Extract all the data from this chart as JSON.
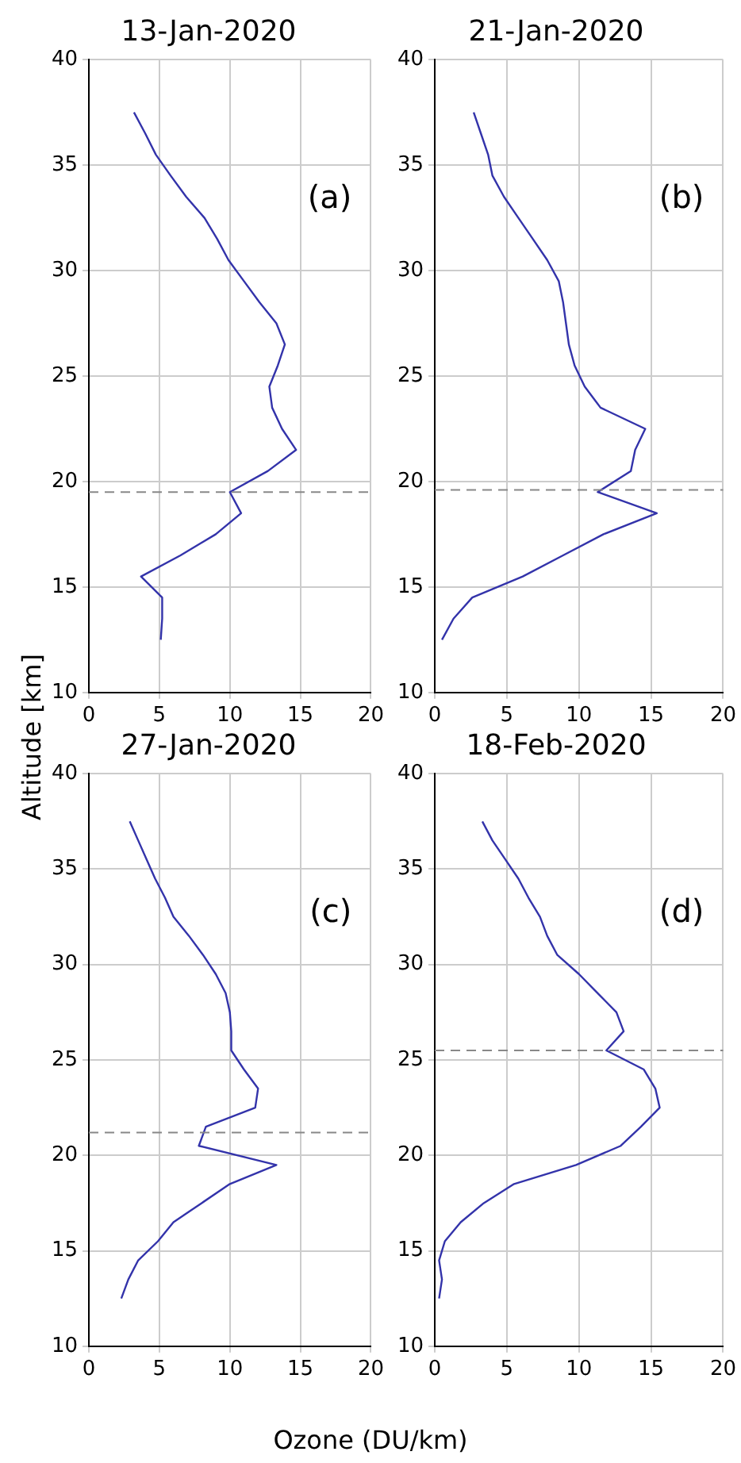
{
  "chart_data": [
    {
      "type": "line",
      "title": "13-Jan-2020",
      "ylabel": "Altitude [km]",
      "annotations": [
        "(a)"
      ],
      "series": [
        {
          "color": "#3333aa",
          "x": [
            3.2,
            4.0,
            4.75,
            5.8,
            6.9,
            8.2,
            9.1,
            9.9,
            11.0,
            12.1,
            13.3,
            13.9,
            13.4,
            12.8,
            13.0,
            13.7,
            14.7,
            12.7,
            10.0,
            10.8,
            9.0,
            6.5,
            3.7,
            5.2,
            5.2,
            5.1
          ],
          "values": [
            37.5,
            36.5,
            35.5,
            34.5,
            33.5,
            32.5,
            31.5,
            30.5,
            29.5,
            28.5,
            27.5,
            26.5,
            25.5,
            24.5,
            23.5,
            22.5,
            21.5,
            20.5,
            19.5,
            18.5,
            17.5,
            16.5,
            15.5,
            14.5,
            13.5,
            12.5
          ]
        }
      ],
      "xlim": [
        0,
        20
      ],
      "xticks": [
        0,
        5,
        10,
        15,
        20
      ],
      "ylim": [
        10,
        40
      ],
      "yticks": [
        10,
        15,
        20,
        25,
        30,
        35,
        40
      ],
      "grid": true,
      "marker": "none",
      "line_style": "solid",
      "ref_lines": [
        {
          "axis": "y",
          "value": 19.5,
          "color": "#888888",
          "line_style": "dashed"
        }
      ]
    },
    {
      "type": "line",
      "title": "21-Jan-2020",
      "annotations": [
        "(b)"
      ],
      "series": [
        {
          "color": "#3333aa",
          "x": [
            2.7,
            3.2,
            3.7,
            4.0,
            4.8,
            5.8,
            6.8,
            7.8,
            8.6,
            8.9,
            9.1,
            9.3,
            9.7,
            10.4,
            11.5,
            14.6,
            13.9,
            13.6,
            11.3,
            15.4,
            11.7,
            8.9,
            6.1,
            2.6,
            1.3,
            0.5
          ],
          "values": [
            37.5,
            36.5,
            35.5,
            34.5,
            33.5,
            32.5,
            31.5,
            30.5,
            29.5,
            28.5,
            27.5,
            26.5,
            25.5,
            24.5,
            23.5,
            22.5,
            21.5,
            20.5,
            19.5,
            18.5,
            17.5,
            16.5,
            15.5,
            14.5,
            13.5,
            12.5
          ]
        }
      ],
      "xlim": [
        0,
        20
      ],
      "xticks": [
        0,
        5,
        10,
        15,
        20
      ],
      "ylim": [
        10,
        40
      ],
      "yticks": [
        10,
        15,
        20,
        25,
        30,
        35,
        40
      ],
      "grid": true,
      "marker": "none",
      "line_style": "solid",
      "ref_lines": [
        {
          "axis": "y",
          "value": 19.6,
          "color": "#888888",
          "line_style": "dashed"
        }
      ]
    },
    {
      "type": "line",
      "title": "27-Jan-2020",
      "xlabel": "Ozone (DU/km)",
      "annotations": [
        "(c)"
      ],
      "series": [
        {
          "color": "#3333aa",
          "x": [
            2.9,
            3.5,
            4.1,
            4.7,
            5.4,
            6.0,
            7.1,
            8.1,
            9.0,
            9.7,
            10.0,
            10.1,
            10.1,
            11.0,
            12.0,
            11.8,
            8.3,
            7.8,
            13.3,
            10.0,
            8.0,
            6.0,
            4.9,
            3.5,
            2.8,
            2.3
          ],
          "values": [
            37.5,
            36.5,
            35.5,
            34.5,
            33.5,
            32.5,
            31.5,
            30.5,
            29.5,
            28.5,
            27.5,
            26.5,
            25.5,
            24.5,
            23.5,
            22.5,
            21.5,
            20.5,
            19.5,
            18.5,
            17.5,
            16.5,
            15.5,
            14.5,
            13.5,
            12.5
          ]
        }
      ],
      "xlim": [
        0,
        20
      ],
      "xticks": [
        0,
        5,
        10,
        15,
        20
      ],
      "ylim": [
        10,
        40
      ],
      "yticks": [
        10,
        15,
        20,
        25,
        30,
        35,
        40
      ],
      "grid": true,
      "marker": "none",
      "line_style": "solid",
      "ref_lines": [
        {
          "axis": "y",
          "value": 21.2,
          "color": "#888888",
          "line_style": "dashed"
        }
      ]
    },
    {
      "type": "line",
      "title": "18-Feb-2020",
      "annotations": [
        "(d)"
      ],
      "series": [
        {
          "color": "#3333aa",
          "x": [
            3.3,
            4.0,
            4.9,
            5.8,
            6.5,
            7.3,
            7.8,
            8.5,
            10.0,
            11.3,
            12.6,
            13.1,
            11.9,
            14.5,
            15.3,
            15.6,
            14.3,
            12.9,
            9.8,
            5.5,
            3.4,
            1.8,
            0.7,
            0.3,
            0.5,
            0.3
          ],
          "values": [
            37.5,
            36.5,
            35.5,
            34.5,
            33.5,
            32.5,
            31.5,
            30.5,
            29.5,
            28.5,
            27.5,
            26.5,
            25.5,
            24.5,
            23.5,
            22.5,
            21.5,
            20.5,
            19.5,
            18.5,
            17.5,
            16.5,
            15.5,
            14.5,
            13.5,
            12.5
          ]
        }
      ],
      "xlim": [
        0,
        20
      ],
      "xticks": [
        0,
        5,
        10,
        15,
        20
      ],
      "ylim": [
        10,
        40
      ],
      "yticks": [
        10,
        15,
        20,
        25,
        30,
        35,
        40
      ],
      "grid": true,
      "marker": "none",
      "line_style": "solid",
      "ref_lines": [
        {
          "axis": "y",
          "value": 25.5,
          "color": "#888888",
          "line_style": "dashed"
        }
      ]
    }
  ]
}
